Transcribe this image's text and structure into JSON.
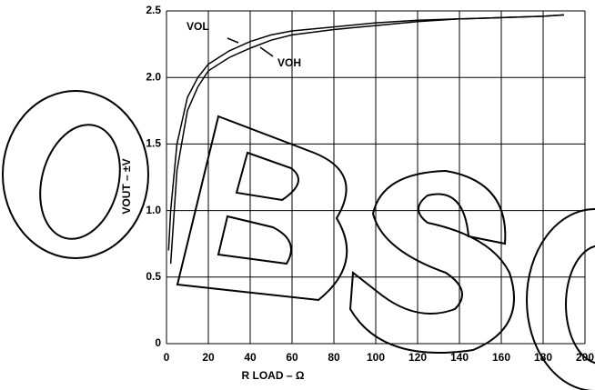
{
  "chart_data": {
    "type": "line",
    "x_label": "R LOAD – Ω",
    "y_label": "VOUT – ±V",
    "series": [
      {
        "name": "VOL",
        "color": "#000000",
        "x": [
          1,
          2,
          5,
          10,
          15,
          20,
          30,
          40,
          50,
          60,
          80,
          100,
          120,
          140,
          160,
          180,
          190
        ],
        "values": [
          0.7,
          1.0,
          1.5,
          1.85,
          2.0,
          2.1,
          2.2,
          2.27,
          2.32,
          2.35,
          2.38,
          2.41,
          2.43,
          2.44,
          2.45,
          2.46,
          2.47
        ]
      },
      {
        "name": "VOH",
        "color": "#000000",
        "x": [
          2,
          5,
          10,
          15,
          20,
          30,
          40,
          50,
          60,
          80,
          100,
          120,
          140,
          160,
          180,
          190
        ],
        "values": [
          0.6,
          1.3,
          1.75,
          1.93,
          2.05,
          2.15,
          2.22,
          2.28,
          2.32,
          2.36,
          2.39,
          2.42,
          2.44,
          2.45,
          2.46,
          2.47
        ]
      }
    ],
    "xlim": [
      0,
      200
    ],
    "ylim": [
      0,
      2.5
    ],
    "xticks": [
      0,
      20,
      40,
      60,
      80,
      100,
      120,
      140,
      160,
      180,
      200
    ],
    "yticks": [
      0,
      {
        "value": 0.5,
        "label": "0.5"
      },
      {
        "value": 1.0,
        "label": "1.0"
      },
      {
        "value": 1.5,
        "label": "1.5"
      },
      {
        "value": 2.0,
        "label": "2.0"
      },
      {
        "value": 2.5,
        "label": "2.5"
      }
    ],
    "grid": true
  }
}
